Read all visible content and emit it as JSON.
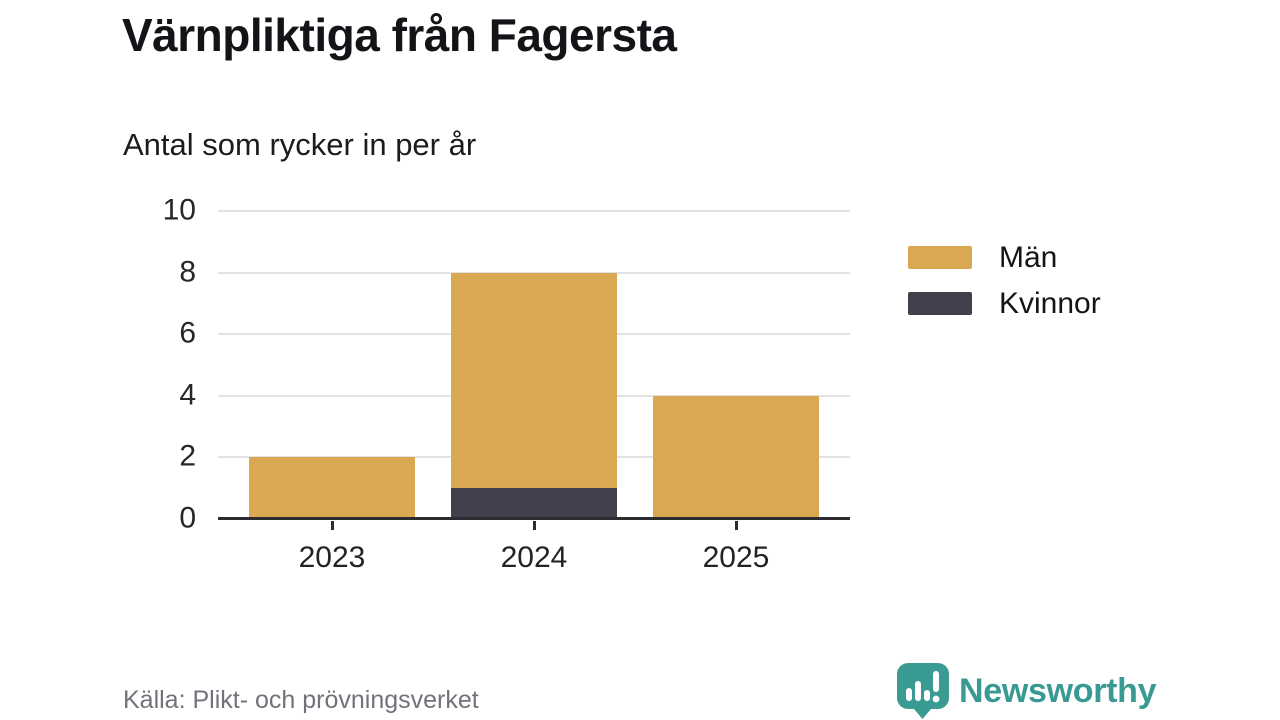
{
  "header": {
    "title": "Värnpliktiga från Fagersta",
    "subtitle": "Antal som rycker in per år"
  },
  "chart_data": {
    "type": "bar",
    "stacked": true,
    "title": "Värnpliktiga från Fagersta",
    "subtitle": "Antal som rycker in per år",
    "categories": [
      "2023",
      "2024",
      "2025"
    ],
    "series": [
      {
        "name": "Män",
        "color": "#D9A850",
        "values": [
          2,
          7,
          4
        ]
      },
      {
        "name": "Kvinnor",
        "color": "#41414E",
        "values": [
          0,
          1,
          0
        ]
      }
    ],
    "stack_bottom_to_top": [
      "Kvinnor",
      "Män"
    ],
    "stack_totals": [
      2,
      8,
      4
    ],
    "xlabel": "",
    "ylabel": "",
    "ylim": [
      0,
      10
    ],
    "yticks": [
      0,
      2,
      4,
      6,
      8,
      10
    ],
    "grid": "horizontal",
    "legend_position": "right"
  },
  "legend": {
    "items": [
      {
        "label": "Män",
        "color": "#D9A850"
      },
      {
        "label": "Kvinnor",
        "color": "#41414E"
      }
    ]
  },
  "footer": {
    "source": "Källa: Plikt- och prövningsverket",
    "brand": "Newsworthy"
  },
  "colors": {
    "bar_men": "#D9A850",
    "bar_women": "#41414E",
    "axis": "#2B2B30",
    "gridline": "#E2E2E2",
    "text": "#141418",
    "muted_text": "#72727A",
    "brand_teal": "#399A93"
  }
}
